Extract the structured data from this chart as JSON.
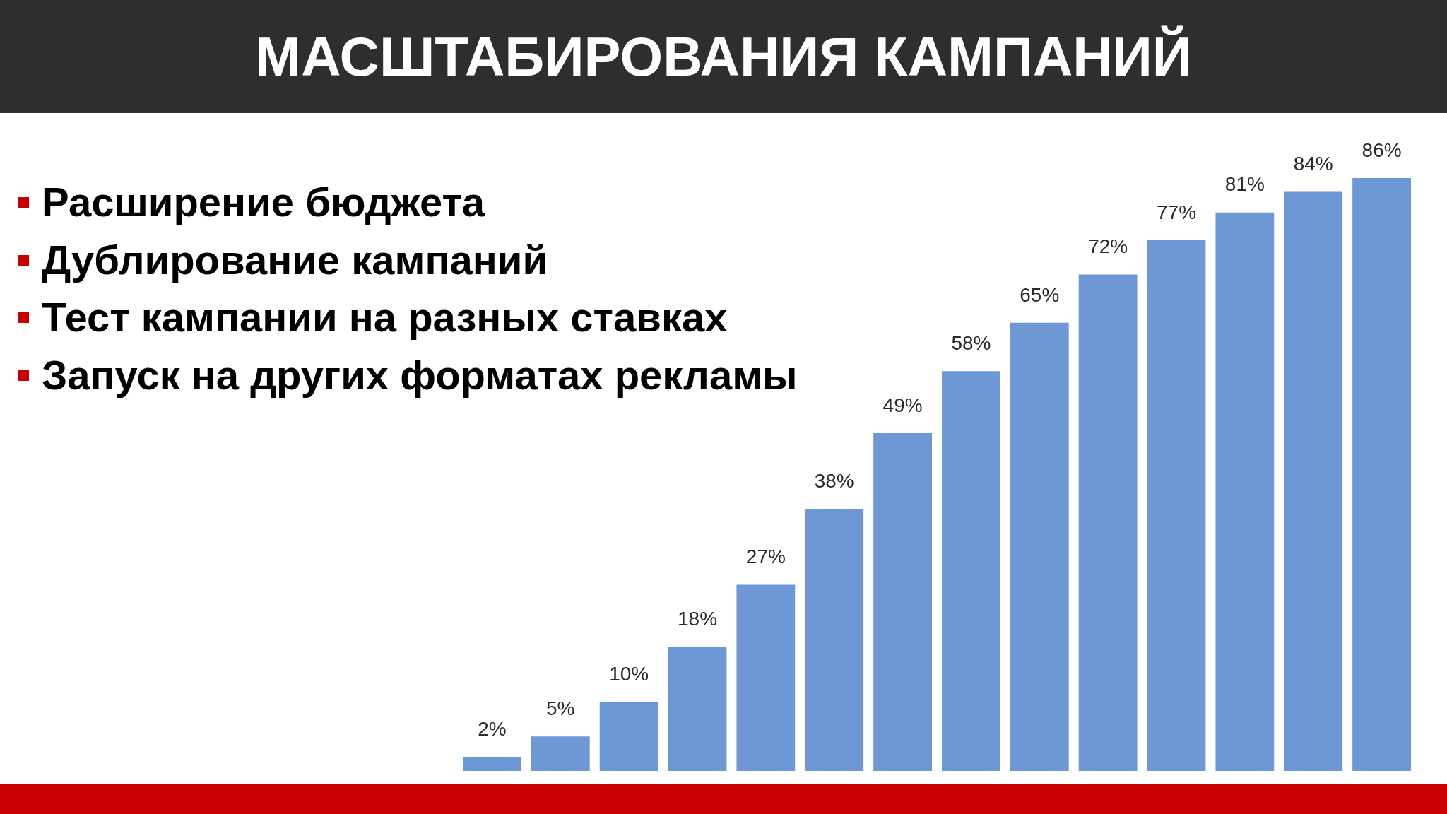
{
  "chart_data": {
    "type": "bar",
    "title": "МАСШТАБИРОВАНИЯ КАМПАНИЙ",
    "annotations": [
      "Расширение бюджета",
      "Дублирование кампаний",
      "Тест кампании на разных ставках",
      "Запуск на других форматах рекламы"
    ],
    "categories": [
      null,
      null,
      null,
      null,
      null,
      null,
      null,
      null,
      null,
      null,
      null,
      null,
      null,
      null
    ],
    "values": [
      2,
      5,
      10,
      18,
      27,
      38,
      49,
      58,
      65,
      72,
      77,
      81,
      84,
      86
    ],
    "value_labels": [
      "2%",
      "5%",
      "10%",
      "18%",
      "27%",
      "38%",
      "49%",
      "58%",
      "65%",
      "72%",
      "77%",
      "81%",
      "84%",
      "86%"
    ],
    "color": "#6e97d5",
    "tick_labels": false
  }
}
